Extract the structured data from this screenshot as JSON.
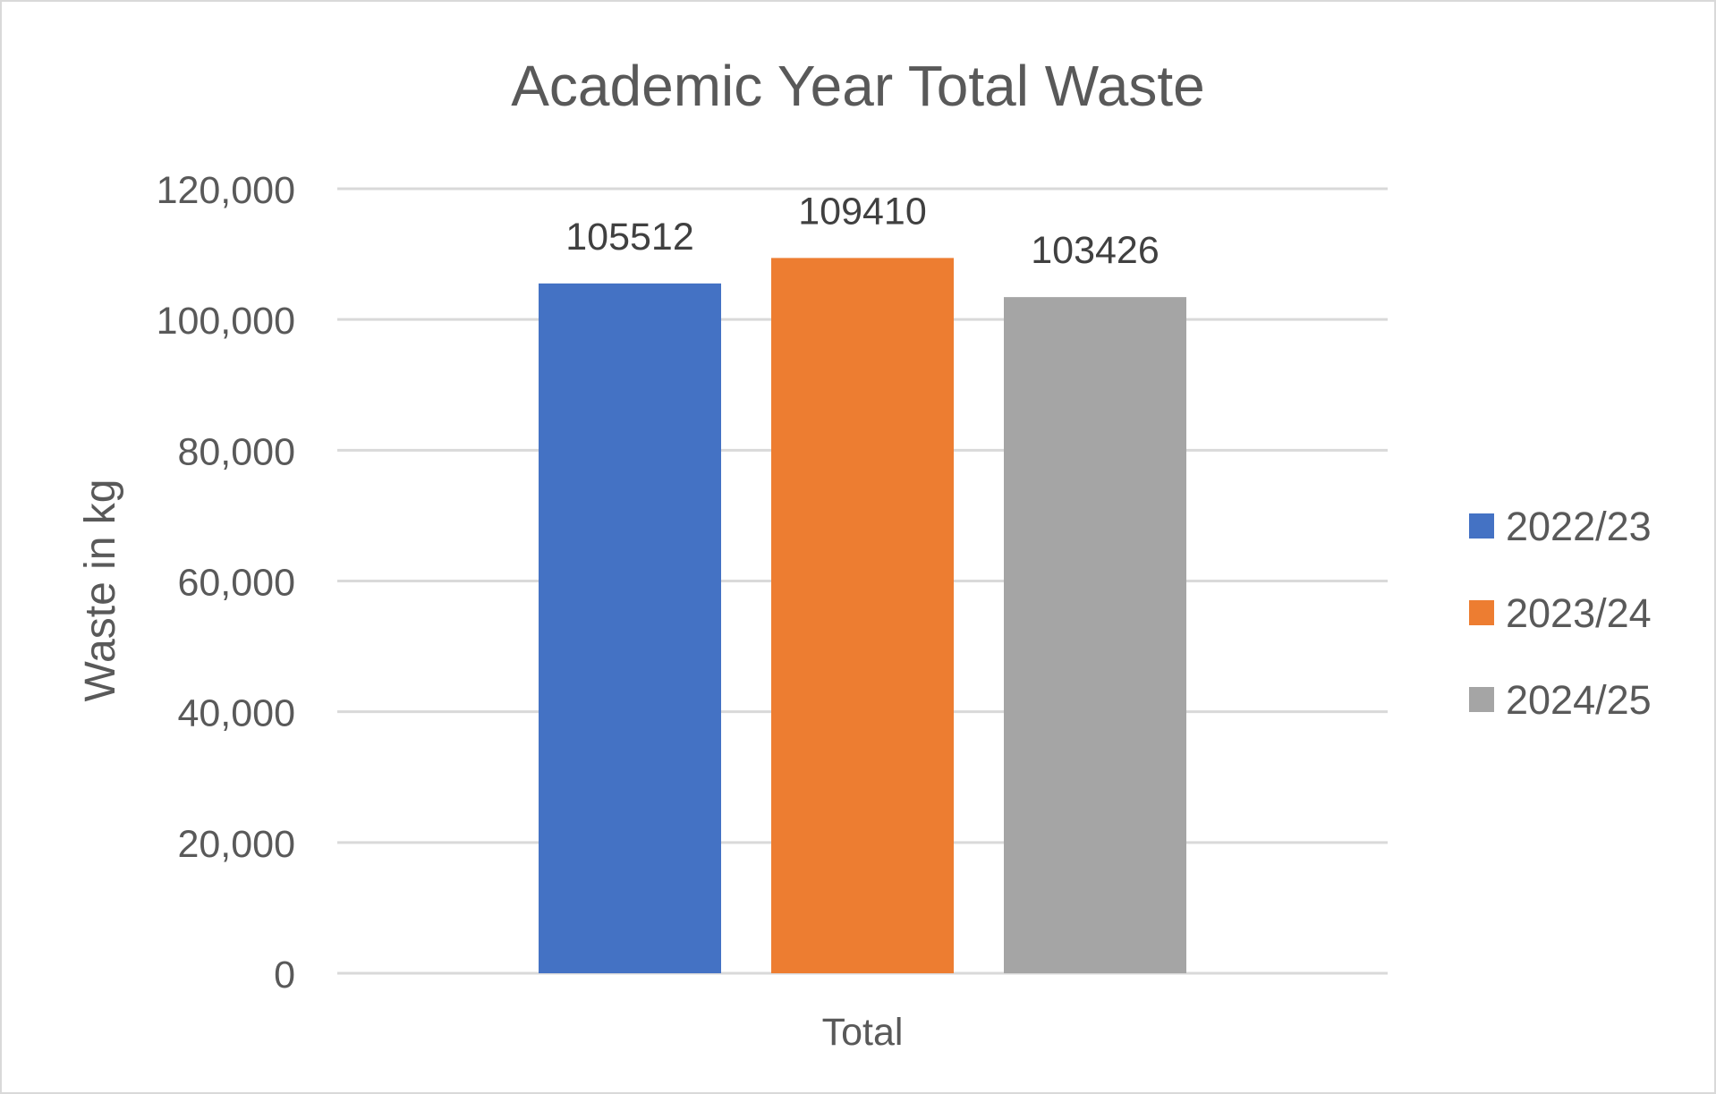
{
  "chart_data": {
    "type": "bar",
    "title": "Academic Year Total Waste",
    "xlabel": "",
    "ylabel": "Waste in kg",
    "categories": [
      "Total"
    ],
    "series": [
      {
        "name": "2022/23",
        "values": [
          105512
        ],
        "color": "#4472C4"
      },
      {
        "name": "2023/24",
        "values": [
          109410
        ],
        "color": "#ED7D31"
      },
      {
        "name": "2024/25",
        "values": [
          103426
        ],
        "color": "#A5A5A5"
      }
    ],
    "ylim": [
      0,
      120000
    ],
    "yticks": [
      0,
      20000,
      40000,
      60000,
      80000,
      100000,
      120000
    ],
    "ytick_labels": [
      "0",
      "20,000",
      "40,000",
      "60,000",
      "80,000",
      "100,000",
      "120,000"
    ],
    "data_labels": [
      "105512",
      "109410",
      "103426"
    ],
    "grid": true,
    "legend_position": "right"
  },
  "colors": {
    "text": "#595959",
    "title": "#595959",
    "data_label": "#404040",
    "gridline": "#d9d9d9",
    "border": "#d9d9d9"
  }
}
